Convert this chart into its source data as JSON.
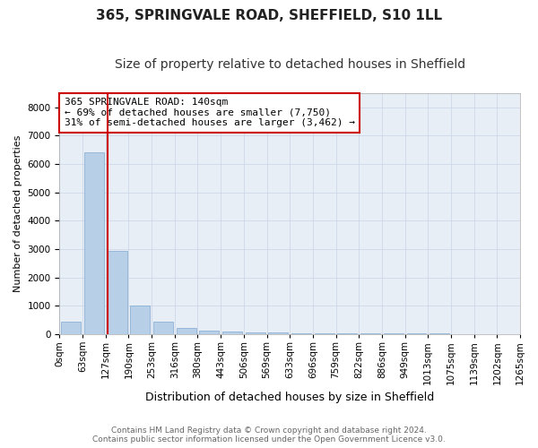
{
  "title": "365, SPRINGVALE ROAD, SHEFFIELD, S10 1LL",
  "subtitle": "Size of property relative to detached houses in Sheffield",
  "xlabel": "Distribution of detached houses by size in Sheffield",
  "ylabel": "Number of detached properties",
  "footer_line1": "Contains HM Land Registry data © Crown copyright and database right 2024.",
  "footer_line2": "Contains public sector information licensed under the Open Government Licence v3.0.",
  "bin_labels": [
    "0sqm",
    "63sqm",
    "127sqm",
    "190sqm",
    "253sqm",
    "316sqm",
    "380sqm",
    "443sqm",
    "506sqm",
    "569sqm",
    "633sqm",
    "696sqm",
    "759sqm",
    "822sqm",
    "886sqm",
    "949sqm",
    "1013sqm",
    "1075sqm",
    "1139sqm",
    "1202sqm",
    "1265sqm"
  ],
  "counts": [
    430,
    6400,
    2950,
    1000,
    430,
    220,
    140,
    95,
    70,
    55,
    45,
    38,
    30,
    25,
    20,
    18,
    15,
    12,
    10,
    8
  ],
  "bar_color": "#b8cfe8",
  "bar_edge_color": "#7fa8d0",
  "marker_line_color": "#cc0000",
  "annotation_box_color": "#cc0000",
  "annotation_line1": "365 SPRINGVALE ROAD: 140sqm",
  "annotation_line2": "← 69% of detached houses are smaller (7,750)",
  "annotation_line3": "31% of semi-detached houses are larger (3,462) →",
  "marker_bin_index": 2,
  "ylim": [
    0,
    8500
  ],
  "yticks": [
    0,
    1000,
    2000,
    3000,
    4000,
    5000,
    6000,
    7000,
    8000
  ],
  "background_color": "#ffffff",
  "plot_bg_color": "#e8eef5",
  "grid_color": "#c8d4e4",
  "title_fontsize": 11,
  "subtitle_fontsize": 10,
  "xlabel_fontsize": 9,
  "ylabel_fontsize": 8,
  "tick_fontsize": 7.5,
  "annotation_fontsize": 8
}
